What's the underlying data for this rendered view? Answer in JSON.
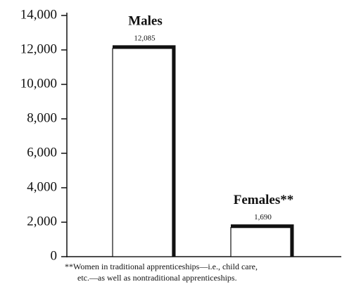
{
  "chart_data": {
    "type": "bar",
    "categories": [
      "Males",
      "Females**"
    ],
    "values": [
      12085,
      1690
    ],
    "value_labels": [
      "12,085",
      "1,690"
    ],
    "color": "#ffffff",
    "ylim": [
      0,
      14000
    ],
    "yticks": [
      0,
      {
        "value": 2000,
        "label": "2,000"
      },
      {
        "value": 4000,
        "label": "4,000"
      },
      {
        "value": 6000,
        "label": "6,000"
      },
      {
        "value": 8000,
        "label": "8,000"
      },
      {
        "value": 10000,
        "label": "10,000"
      },
      {
        "value": 12000,
        "label": "12,000"
      },
      {
        "value": 14000,
        "label": "14,000"
      }
    ],
    "footnote": [
      "**Women in traditional apprenticeships—i.e., child care,",
      "etc.—as well as nontraditional apprenticeships."
    ]
  }
}
